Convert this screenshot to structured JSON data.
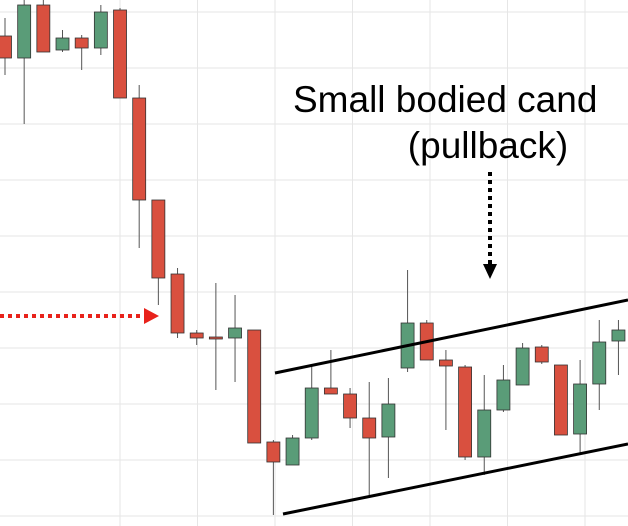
{
  "chart_data": {
    "type": "candlestick",
    "annotations": [
      "Small bodied cand",
      "(pullback)"
    ],
    "up_color": "#5a9c78",
    "down_color": "#d9503f",
    "ylim": [
      0,
      526
    ],
    "open": [
      490,
      468,
      521,
      476,
      488,
      478,
      516,
      428,
      326,
      252,
      193,
      189,
      188,
      196,
      84,
      61,
      88,
      138,
      132,
      108,
      89,
      158,
      203,
      166,
      159,
      69,
      116,
      141,
      179,
      161,
      92,
      142,
      185
    ],
    "high": [
      508,
      526,
      526,
      496,
      491,
      521,
      518,
      441,
      326,
      258,
      196,
      243,
      231,
      196,
      86,
      91,
      161,
      176,
      138,
      144,
      148,
      256,
      206,
      176,
      161,
      151,
      161,
      183,
      181,
      161,
      166,
      206,
      206
    ],
    "low": [
      451,
      402,
      474,
      474,
      456,
      471,
      428,
      278,
      221,
      188,
      181,
      136,
      144,
      83,
      11,
      61,
      86,
      132,
      98,
      28,
      48,
      154,
      166,
      96,
      66,
      51,
      114,
      141,
      162,
      91,
      71,
      116,
      151
    ],
    "close": [
      468,
      521,
      474,
      488,
      478,
      514,
      428,
      326,
      248,
      193,
      188,
      187,
      198,
      83,
      64,
      88,
      138,
      132,
      108,
      88,
      122,
      203,
      166,
      160,
      69,
      116,
      146,
      178,
      164,
      91,
      142,
      184,
      196
    ]
  }
}
